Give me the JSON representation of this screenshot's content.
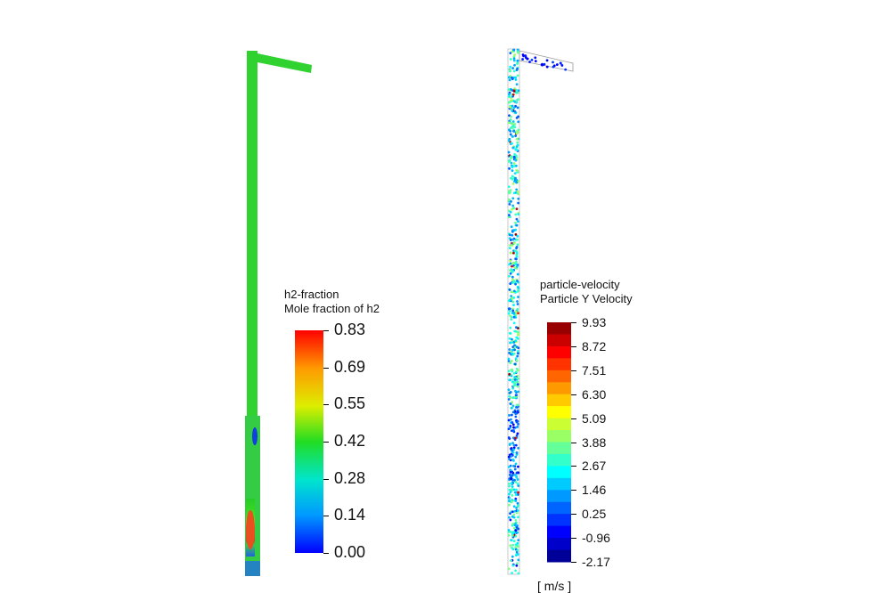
{
  "left_plot": {
    "title": "h2-fraction",
    "subtitle": "Mole fraction of h2",
    "colorbar_labels": [
      "0.83",
      "0.69",
      "0.55",
      "0.42",
      "0.28",
      "0.14",
      "0.00"
    ],
    "range": [
      0,
      0.83
    ]
  },
  "right_plot": {
    "title": "particle-velocity",
    "subtitle": "Particle Y Velocity",
    "colorbar_labels": [
      "9.93",
      "8.72",
      "7.51",
      "6.30",
      "5.09",
      "3.88",
      "2.67",
      "1.46",
      "0.25",
      "-0.96",
      "-2.17"
    ],
    "range": [
      -2.17,
      9.93
    ],
    "units": "[ m/s ]"
  },
  "colors": {
    "green": "#2fd22f",
    "blue": "#1030e0",
    "red": "#e02010"
  }
}
